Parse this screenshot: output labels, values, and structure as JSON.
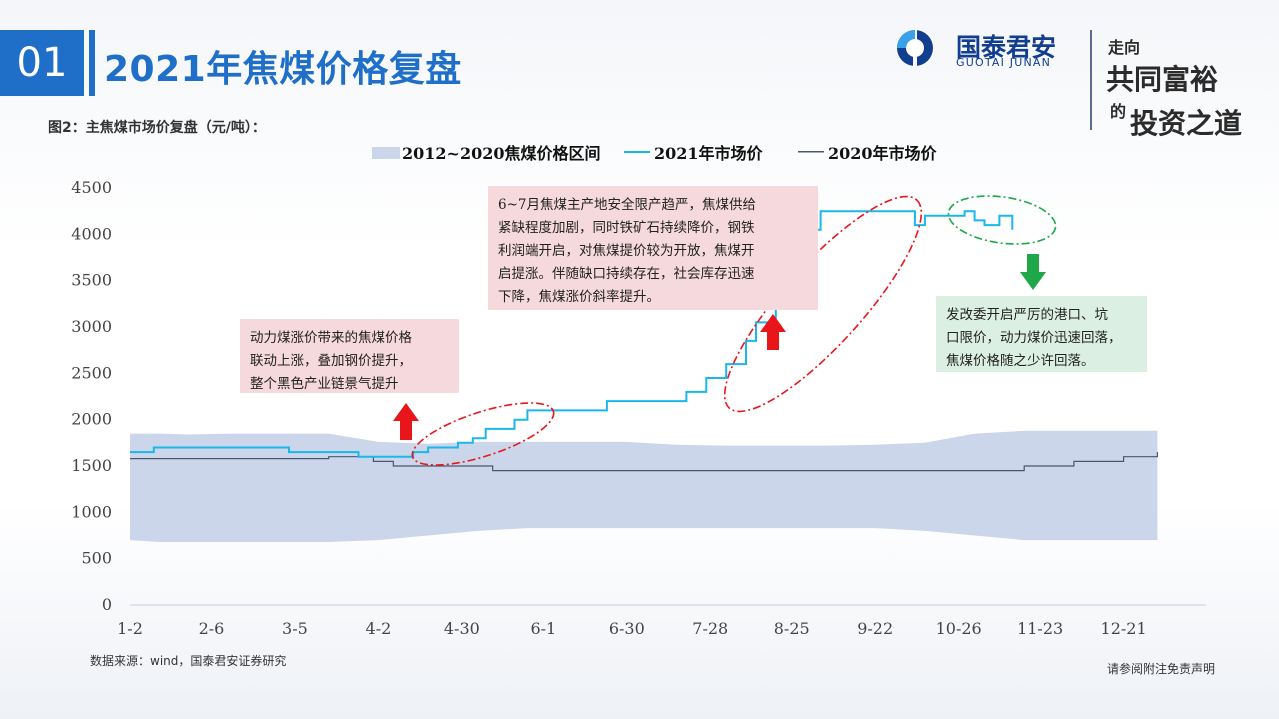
{
  "header": {
    "section_number": "01",
    "title": "2021年焦煤价格复盘",
    "logo_name": "国泰君安",
    "logo_en": "GUOTAI JUNAN",
    "slogan": [
      "走向",
      "共同富裕",
      "的",
      "投资之道"
    ]
  },
  "figure": {
    "caption": "图2：主焦煤市场价复盘（元/吨）：",
    "source": "数据来源：wind，国泰君安证券研究",
    "disclaimer": "请参阅附注免责声明"
  },
  "annotations": {
    "box1": [
      "动力煤涨价带来的焦煤价格",
      "联动上涨，叠加钢价提升，",
      "整个黑色产业链景气提升"
    ],
    "box2": [
      "6~7月焦煤主产地安全限产趋严，焦煤供给",
      "紧缺程度加剧，同时铁矿石持续降价，钢铁",
      "利润端开启，对焦煤提价较为开放，焦煤开",
      "启提涨。伴随缺口持续存在，社会库存迅速",
      "下降，焦煤涨价斜率提升。"
    ],
    "box3": [
      "发改委开启严厉的港口、坑",
      "口限价，动力煤价迅速回落，",
      "焦煤价格随之少许回落。"
    ]
  },
  "colors": {
    "accent": "#1f6fc9",
    "series_2021": "#1ab7ea",
    "series_2020": "#4a5570",
    "band": "#ccd6ea",
    "up_arrow": "#e8161b",
    "down_arrow": "#1ea84a",
    "red_box": "#f6d9dc",
    "green_box": "#dcefe3"
  },
  "chart_data": {
    "type": "line",
    "xlabel": "",
    "ylabel": "",
    "ylim": [
      0,
      4500
    ],
    "yticks": [
      0,
      500,
      1000,
      1500,
      2000,
      2500,
      3000,
      3500,
      4000,
      4500
    ],
    "xtick_labels": [
      "1-2",
      "2-6",
      "3-5",
      "4-2",
      "4-30",
      "6-1",
      "6-30",
      "7-28",
      "8-25",
      "9-22",
      "10-26",
      "11-23",
      "12-21"
    ],
    "x_domain": [
      0,
      1000
    ],
    "xtick_positions": [
      0,
      82,
      166,
      250,
      334,
      416,
      500,
      584,
      666,
      750,
      834,
      916,
      1000
    ],
    "grid": "none",
    "legend_position": "top",
    "series": [
      {
        "name": "2012~2020焦煤价格区间",
        "kind": "band",
        "x": [
          0,
          30,
          60,
          100,
          150,
          200,
          250,
          300,
          350,
          400,
          450,
          500,
          550,
          600,
          650,
          700,
          750,
          800,
          850,
          900,
          950,
          1000,
          1034
        ],
        "upper": [
          1850,
          1850,
          1840,
          1850,
          1850,
          1850,
          1760,
          1740,
          1760,
          1760,
          1760,
          1760,
          1730,
          1720,
          1720,
          1720,
          1730,
          1750,
          1850,
          1880,
          1880,
          1880,
          1880
        ],
        "lower": [
          700,
          680,
          680,
          680,
          680,
          680,
          700,
          750,
          800,
          830,
          830,
          830,
          830,
          830,
          830,
          830,
          830,
          800,
          750,
          700,
          700,
          700,
          700
        ]
      },
      {
        "name": "2021年市场价",
        "kind": "line",
        "x": [
          0,
          18,
          24,
          152,
          160,
          230,
          250,
          270,
          285,
          300,
          330,
          345,
          358,
          387,
          400,
          470,
          480,
          560,
          580,
          600,
          620,
          630,
          650,
          660,
          670,
          680,
          695,
          700,
          710,
          720,
          740,
          790,
          800,
          820,
          840,
          850,
          860,
          875,
          888
        ],
        "y": [
          1650,
          1650,
          1700,
          1700,
          1650,
          1600,
          1600,
          1600,
          1650,
          1700,
          1750,
          1800,
          1900,
          2000,
          2100,
          2100,
          2200,
          2300,
          2450,
          2600,
          2850,
          3050,
          3500,
          3850,
          3900,
          4050,
          4250,
          4250,
          4250,
          4250,
          4250,
          4100,
          4200,
          4200,
          4250,
          4150,
          4100,
          4200,
          4050
        ]
      },
      {
        "name": "2020年市场价",
        "kind": "line",
        "x": [
          0,
          160,
          200,
          230,
          245,
          265,
          300,
          345,
          365,
          385,
          580,
          620,
          720,
          760,
          820,
          900,
          950,
          1000,
          1034
        ],
        "y": [
          1580,
          1580,
          1600,
          1600,
          1550,
          1500,
          1500,
          1500,
          1450,
          1450,
          1450,
          1450,
          1450,
          1450,
          1450,
          1500,
          1550,
          1600,
          1650
        ]
      }
    ]
  }
}
